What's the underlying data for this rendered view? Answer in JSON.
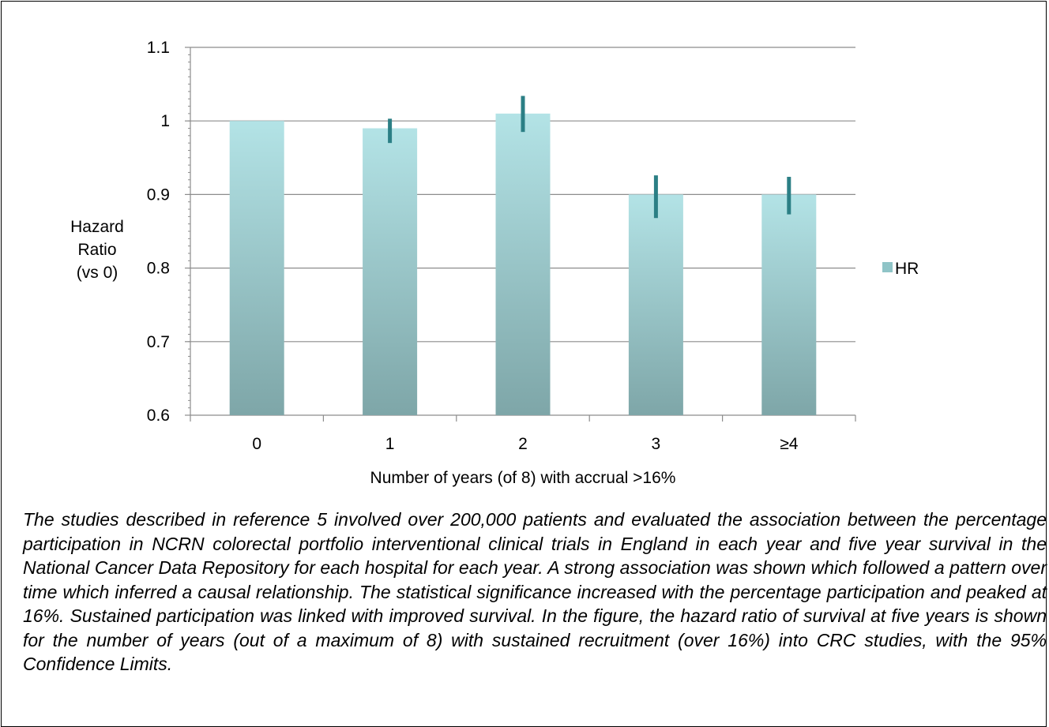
{
  "chart_data": {
    "type": "bar",
    "categories": [
      "0",
      "1",
      "2",
      "3",
      "≥4"
    ],
    "series": [
      {
        "name": "HR",
        "values": [
          1.0,
          0.99,
          1.01,
          0.9,
          0.9
        ],
        "ci_lower": [
          1.0,
          0.97,
          0.985,
          0.868,
          0.873
        ],
        "ci_upper": [
          1.0,
          1.003,
          1.034,
          0.926,
          0.924
        ]
      }
    ],
    "ylabel_lines": [
      "Hazard",
      "Ratio",
      "(vs 0)"
    ],
    "xlabel": "Number of years (of 8) with accrual >16%",
    "ylim": [
      0.6,
      1.1
    ],
    "yticks": [
      0.6,
      0.7,
      0.8,
      0.9,
      1.0,
      1.1
    ],
    "ytick_labels": [
      "0.6",
      "0.7",
      "0.8",
      "0.9",
      "1",
      "1.1"
    ],
    "grid": true,
    "legend_placement": "right",
    "colors": {
      "bar_top": "#b3e3e6",
      "bar_bottom": "#7ea6a8",
      "error_bar": "#2b7f85",
      "gridline": "#8c8c8c",
      "legend_swatch": "#8fc4c7"
    }
  },
  "caption": "The studies described in reference 5 involved over 200,000 patients and evaluated the association between the percentage participation in NCRN colorectal portfolio interventional clinical trials in England in each year and five year survival in the National Cancer Data Repository for each hospital for each year.  A strong association was shown which followed a pattern over time which inferred a causal relationship.  The statistical significance increased with the percentage participation and peaked at 16%.  Sustained participation was linked with improved survival.  In the figure, the hazard ratio of survival at five years is shown for the number of years (out of a maximum of 8) with sustained recruitment (over 16%) into CRC studies, with the 95% Confidence Limits."
}
